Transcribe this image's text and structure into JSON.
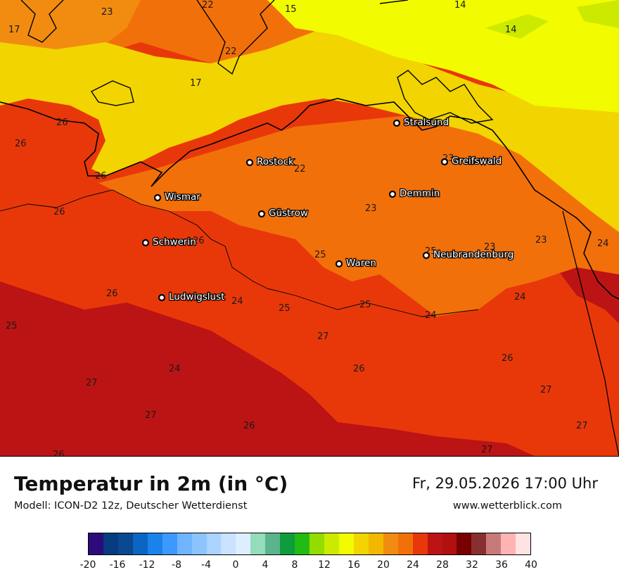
{
  "title": "Temperatur in 2m (in °C)",
  "subtitle": "Modell: ICON-D2 12z, Deutscher Wetterdienst",
  "datetime": "Fr, 29.05.2026 17:00 Uhr",
  "website": "www.wetterblick.com",
  "cities": [
    {
      "name": "Stralsund"
    },
    {
      "name": "Rostock"
    },
    {
      "name": "Greifswald"
    },
    {
      "name": "Demmin"
    },
    {
      "name": "Wismar"
    },
    {
      "name": "Güstrow"
    },
    {
      "name": "Schwerin"
    },
    {
      "name": "Neubrandenburg"
    },
    {
      "name": "Waren"
    },
    {
      "name": "Ludwigslust"
    }
  ],
  "isolabels": [
    "23",
    "22",
    "15",
    "14",
    "14",
    "17",
    "22",
    "17",
    "26",
    "26",
    "26",
    "22",
    "23",
    "26",
    "23",
    "23",
    "26",
    "25",
    "25",
    "23",
    "24",
    "24",
    "25",
    "25",
    "26",
    "24",
    "24",
    "25",
    "27",
    "26",
    "26",
    "24",
    "27",
    "27",
    "27",
    "26",
    "27",
    "27",
    "26"
  ],
  "legend": {
    "colors": [
      "#2e0a7a",
      "#063b7f",
      "#0a4891",
      "#0a66c2",
      "#1a82eb",
      "#3c99ff",
      "#6eb4ff",
      "#8cc4ff",
      "#aad4ff",
      "#c8e2ff",
      "#ddeeff",
      "#94dcbc",
      "#5cb48c",
      "#0f9c3c",
      "#22bb14",
      "#94dc00",
      "#ccea00",
      "#f2fb00",
      "#f2d400",
      "#f2b800",
      "#f28c10",
      "#f2700a",
      "#e8380a",
      "#bc1414",
      "#b01010",
      "#780000",
      "#883030",
      "#c87a7a",
      "#ffb4b4",
      "#ffe2e2"
    ],
    "ticks": [
      "-20",
      "-16",
      "-12",
      "-8",
      "-4",
      "0",
      "4",
      "8",
      "12",
      "16",
      "20",
      "24",
      "28",
      "32",
      "36",
      "40"
    ]
  }
}
